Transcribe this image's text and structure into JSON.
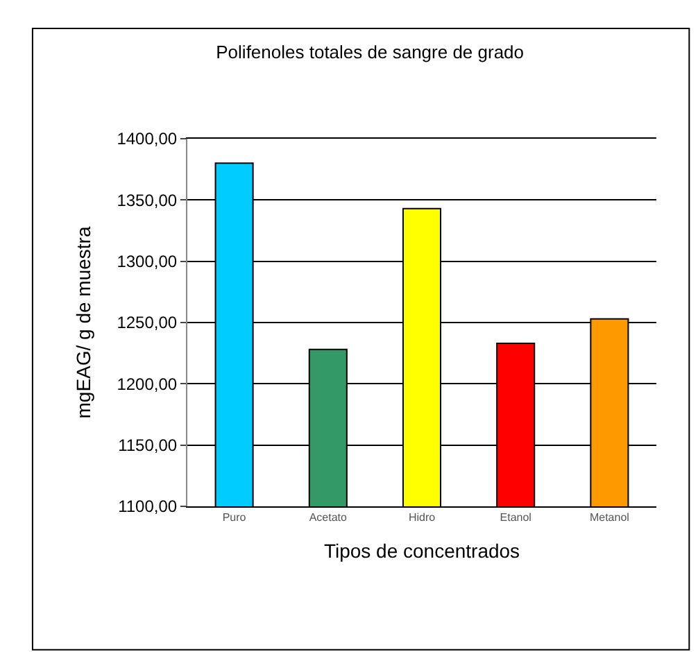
{
  "chart_data": {
    "type": "bar",
    "title": "Polifenoles totales de sangre de grado",
    "xlabel": "Tipos de concentrados",
    "ylabel": "mgEAG/ g de muestra",
    "categories": [
      "Puro",
      "Acetato",
      "Hidro",
      "Etanol",
      "Metanol"
    ],
    "values": [
      1380,
      1228,
      1343,
      1233,
      1253
    ],
    "colors": [
      "#00ccff",
      "#339966",
      "#ffff00",
      "#ff0000",
      "#ff9900"
    ],
    "ylim": [
      1100,
      1400
    ],
    "yticks": [
      {
        "value": 1100,
        "label": "1100,00"
      },
      {
        "value": 1150,
        "label": "1150,00"
      },
      {
        "value": 1200,
        "label": "1200,00"
      },
      {
        "value": 1250,
        "label": "1250,00"
      },
      {
        "value": 1300,
        "label": "1300,00"
      },
      {
        "value": 1350,
        "label": "1350,00"
      },
      {
        "value": 1400,
        "label": "1400,00"
      }
    ],
    "grid": "y"
  }
}
